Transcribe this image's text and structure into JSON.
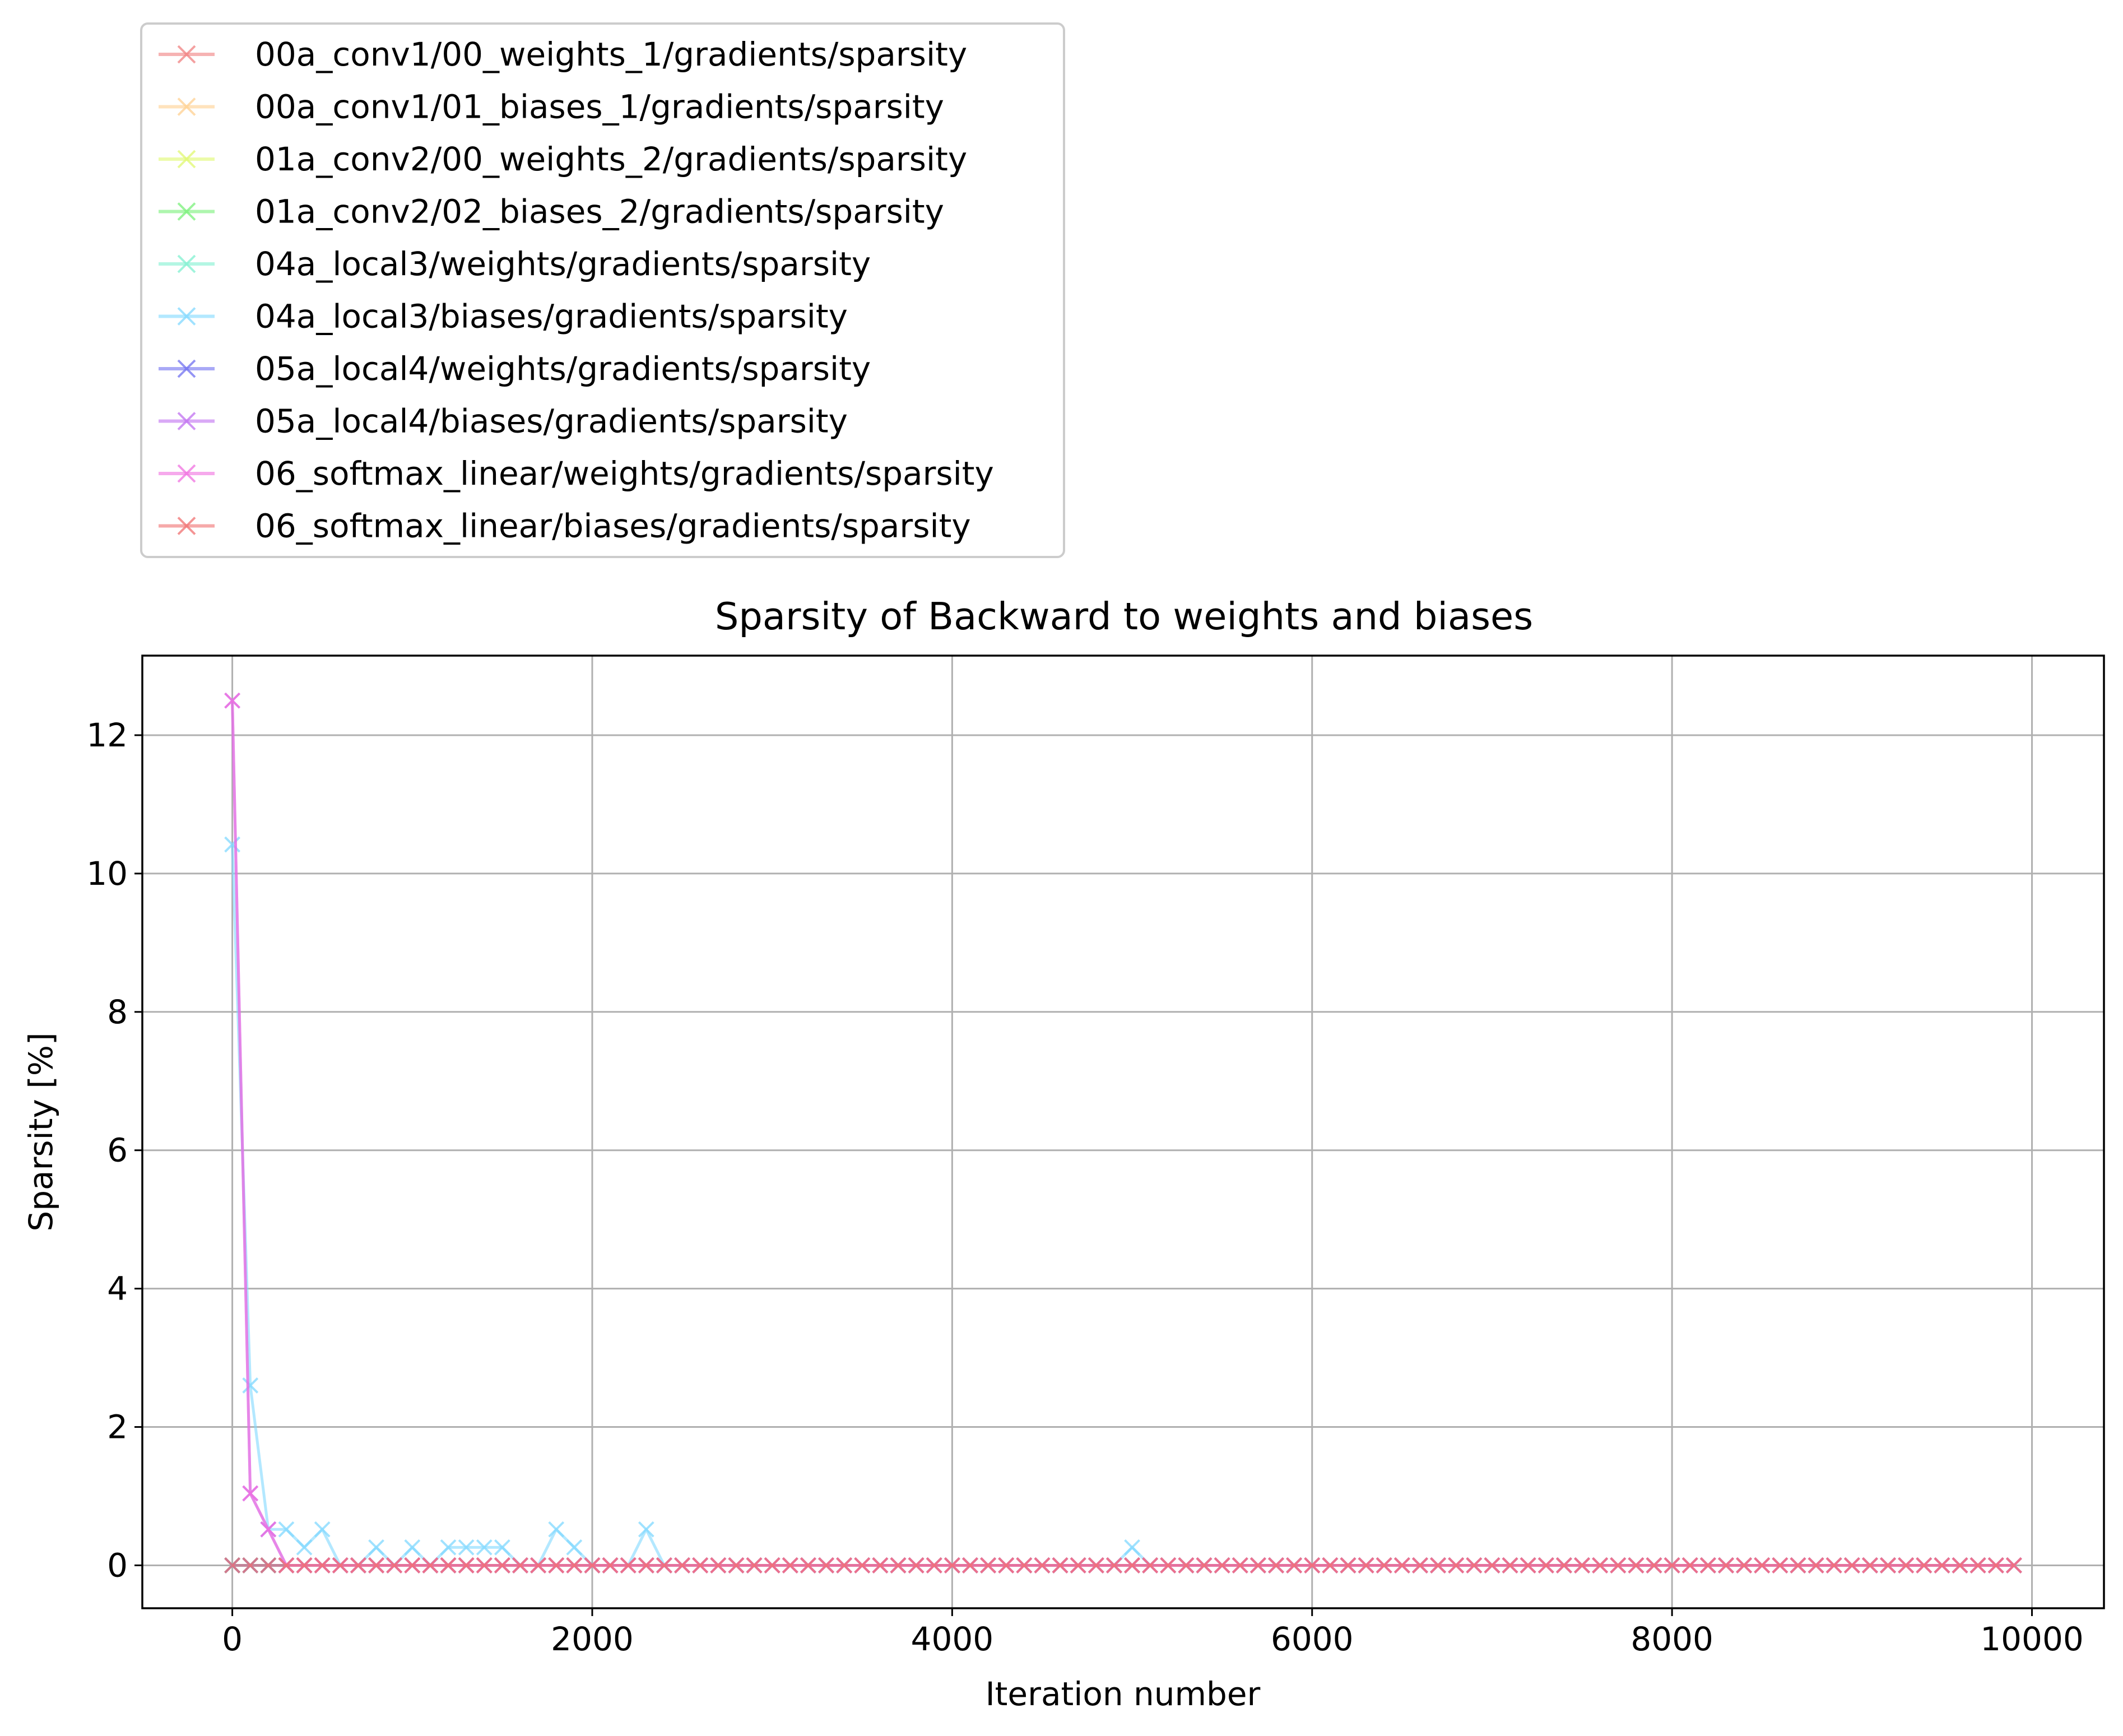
{
  "chart_data": {
    "type": "line",
    "title": "Sparsity of Backward to weights and biases",
    "xlabel": "Iteration number",
    "ylabel": "Sparsity [%]",
    "xlim": [
      -500,
      10400
    ],
    "ylim": [
      -0.62,
      13.15
    ],
    "x_ticks": [
      0,
      2000,
      4000,
      6000,
      8000,
      10000
    ],
    "y_ticks": [
      0,
      2,
      4,
      6,
      8,
      10,
      12
    ],
    "grid": true,
    "legend_position": "above-left",
    "marker": "x",
    "x_step": 100,
    "x_max": 9900,
    "series": [
      {
        "name": "00a_conv1/00_weights_1/gradients/sparsity",
        "color": "#f08080",
        "points": []
      },
      {
        "name": "00a_conv1/01_biases_1/gradients/sparsity",
        "color": "#ffd090",
        "points": []
      },
      {
        "name": "01a_conv2/00_weights_2/gradients/sparsity",
        "color": "#e0f870",
        "points": []
      },
      {
        "name": "01a_conv2/02_biases_2/gradients/sparsity",
        "color": "#78f078",
        "points": []
      },
      {
        "name": "04a_local3/weights/gradients/sparsity",
        "color": "#80f0d0",
        "points": []
      },
      {
        "name": "04a_local3/biases/gradients/sparsity",
        "color": "#80d8ff",
        "points": [
          [
            0,
            10.42
          ],
          [
            100,
            2.6
          ],
          [
            200,
            0.52
          ],
          [
            300,
            0.52
          ],
          [
            400,
            0.26
          ],
          [
            500,
            0.52
          ],
          [
            800,
            0.26
          ],
          [
            1000,
            0.26
          ],
          [
            1200,
            0.26
          ],
          [
            1300,
            0.26
          ],
          [
            1400,
            0.26
          ],
          [
            1500,
            0.26
          ],
          [
            1800,
            0.52
          ],
          [
            1900,
            0.26
          ],
          [
            2300,
            0.52
          ],
          [
            5000,
            0.26
          ]
        ]
      },
      {
        "name": "05a_local4/weights/gradients/sparsity",
        "color": "#7070f0",
        "points": []
      },
      {
        "name": "05a_local4/biases/gradients/sparsity",
        "color": "#c070f0",
        "points": [
          [
            0,
            12.5
          ],
          [
            100,
            1.04
          ],
          [
            200,
            0.52
          ]
        ]
      },
      {
        "name": "06_softmax_linear/weights/gradients/sparsity",
        "color": "#f070e0",
        "points": [
          [
            0,
            12.5
          ],
          [
            100,
            1.04
          ],
          [
            200,
            0.52
          ]
        ]
      },
      {
        "name": "06_softmax_linear/biases/gradients/sparsity",
        "color": "#f07070",
        "points": []
      }
    ]
  }
}
